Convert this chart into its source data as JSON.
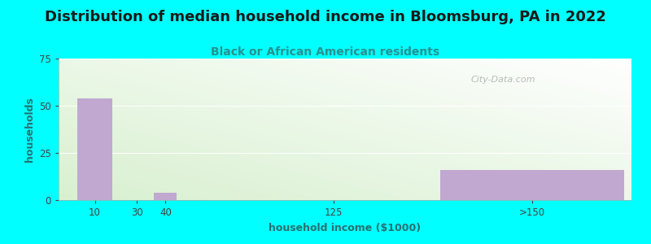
{
  "title": "Distribution of median household income in Bloomsburg, PA in 2022",
  "subtitle": "Black or African American residents",
  "xlabel": "household income ($1000)",
  "ylabel": "households",
  "background_color": "#00FFFF",
  "bar_color": "#c0a8d0",
  "categories": [
    "10",
    "30",
    "40",
    "125",
    ">150"
  ],
  "values": [
    54,
    0,
    4,
    0,
    16
  ],
  "ylim": [
    0,
    75
  ],
  "yticks": [
    0,
    25,
    50,
    75
  ],
  "title_fontsize": 13,
  "subtitle_fontsize": 10,
  "label_fontsize": 9,
  "tick_fontsize": 8.5,
  "title_color": "#1a1a1a",
  "subtitle_color": "#2a9090",
  "axis_label_color": "#2a7070",
  "tick_color": "#444444",
  "watermark_text": "City-Data.com",
  "watermark_color": "#aaaaaa",
  "gradient_color_left": "#d8f0d0",
  "gradient_color_right": "#f8fbf8"
}
